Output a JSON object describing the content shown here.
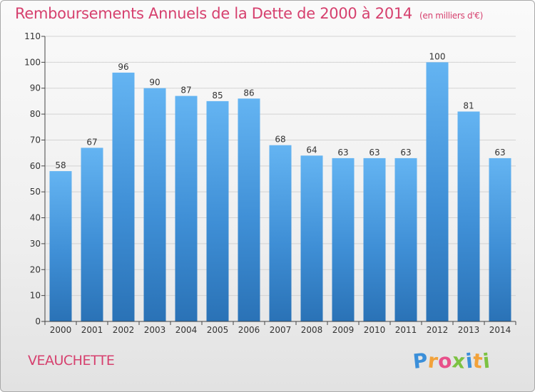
{
  "chart_data": {
    "type": "bar",
    "title": "Remboursements Annuels de la Dette de 2000 à 2014",
    "subtitle": "(en milliers d'€)",
    "categories": [
      "2000",
      "2001",
      "2002",
      "2003",
      "2004",
      "2005",
      "2006",
      "2007",
      "2008",
      "2009",
      "2010",
      "2011",
      "2012",
      "2013",
      "2014"
    ],
    "values": [
      58,
      67,
      96,
      90,
      87,
      85,
      86,
      68,
      64,
      63,
      63,
      63,
      100,
      81,
      63
    ],
    "xlabel": "",
    "ylabel": "",
    "ylim": [
      0,
      110
    ],
    "yticks": [
      0,
      10,
      20,
      30,
      40,
      50,
      60,
      70,
      80,
      90,
      100,
      110
    ],
    "grid": true,
    "bar_color": "#3f8fd6",
    "bar_color_light": "#64b4f2",
    "bar_color_dark": "#2a72b6"
  },
  "location": "VEAUCHETTE",
  "logo": {
    "letters": [
      "P",
      "r",
      "o",
      "x",
      "i",
      "t",
      "i"
    ],
    "colors": [
      "#3b8fd9",
      "#f2a23a",
      "#e8508a",
      "#7cc242",
      "#3b8fd9",
      "#f2a23a",
      "#7cc242"
    ]
  },
  "colors": {
    "title": "#d6406e",
    "grid": "#d3d3d3",
    "axis": "#444444"
  }
}
